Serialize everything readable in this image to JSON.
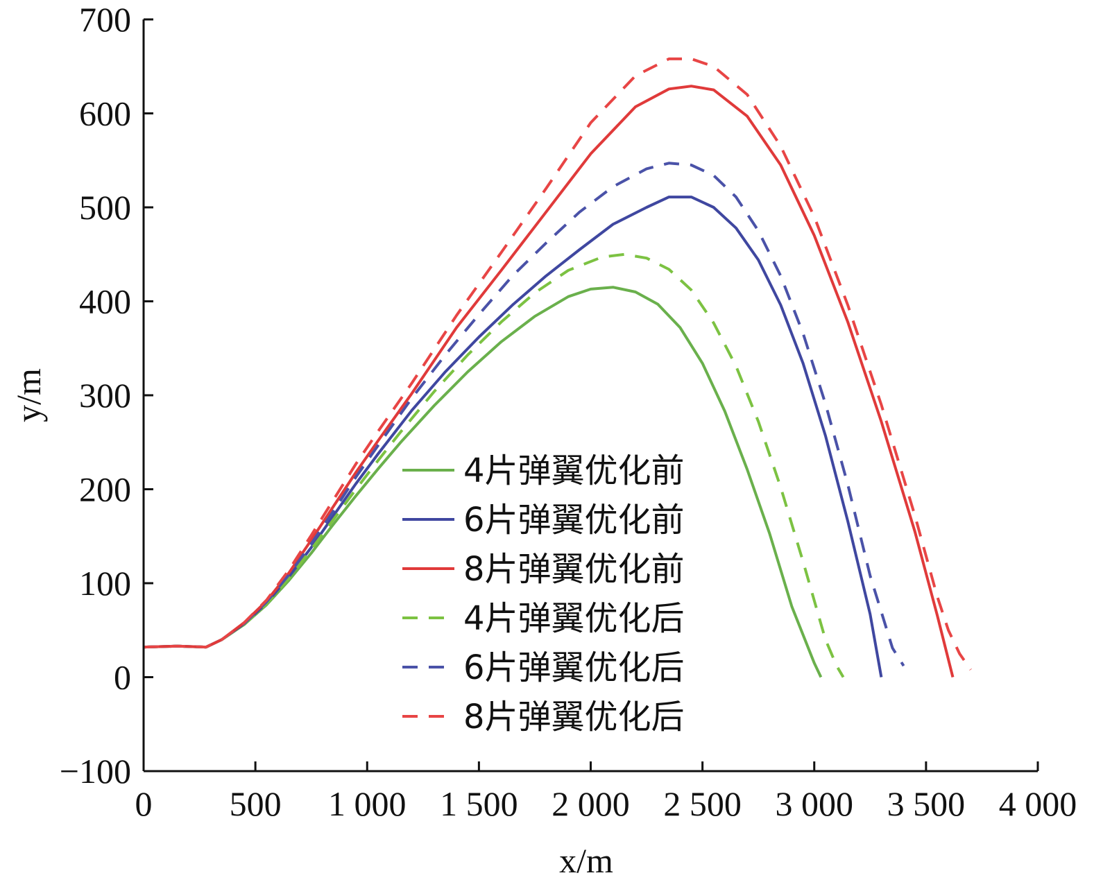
{
  "chart_data": {
    "type": "line",
    "title": "",
    "xlabel": "x/m",
    "ylabel": "y/m",
    "xlim": [
      0,
      4000
    ],
    "ylim": [
      -100,
      700
    ],
    "xticks": [
      0,
      500,
      1000,
      1500,
      2000,
      2500,
      3000,
      3500,
      4000
    ],
    "xtick_labels": [
      "0",
      "500",
      "1 000",
      "1 500",
      "2 000",
      "2 500",
      "3 000",
      "3 500",
      "4 000"
    ],
    "yticks": [
      -100,
      0,
      100,
      200,
      300,
      400,
      500,
      600,
      700
    ],
    "ytick_labels": [
      "−100",
      "0",
      "100",
      "200",
      "300",
      "400",
      "500",
      "600",
      "700"
    ],
    "grid": false,
    "legend_position": "center-right",
    "series": [
      {
        "name": "4片弹翼优化前",
        "color": "#6ab04c",
        "dash": "solid",
        "x": [
          0,
          150,
          280,
          350,
          450,
          550,
          650,
          750,
          850,
          950,
          1050,
          1150,
          1300,
          1450,
          1600,
          1750,
          1900,
          2000,
          2100,
          2200,
          2300,
          2400,
          2500,
          2600,
          2700,
          2800,
          2900,
          3000,
          3030
        ],
        "y": [
          32,
          33,
          32,
          40,
          56,
          77,
          103,
          132,
          163,
          193,
          222,
          250,
          289,
          325,
          357,
          384,
          405,
          413,
          415,
          410,
          397,
          372,
          334,
          283,
          221,
          153,
          75,
          15,
          0
        ]
      },
      {
        "name": "6片弹翼优化前",
        "color": "#3f47a0",
        "dash": "solid",
        "x": [
          0,
          150,
          280,
          350,
          450,
          550,
          650,
          750,
          850,
          950,
          1050,
          1200,
          1350,
          1500,
          1650,
          1800,
          1950,
          2100,
          2250,
          2350,
          2450,
          2550,
          2650,
          2750,
          2850,
          2950,
          3050,
          3150,
          3250,
          3300
        ],
        "y": [
          32,
          33,
          32,
          40,
          57,
          79,
          107,
          138,
          172,
          206,
          238,
          284,
          325,
          362,
          396,
          427,
          455,
          482,
          500,
          511,
          511,
          500,
          478,
          444,
          396,
          334,
          257,
          166,
          67,
          0
        ]
      },
      {
        "name": "8片弹翼优化前",
        "color": "#e03a3a",
        "dash": "solid",
        "x": [
          0,
          150,
          280,
          350,
          450,
          550,
          650,
          750,
          850,
          950,
          1050,
          1200,
          1400,
          1600,
          1800,
          2000,
          2200,
          2350,
          2450,
          2550,
          2700,
          2850,
          3000,
          3150,
          3300,
          3450,
          3550,
          3620
        ],
        "y": [
          32,
          33,
          32,
          40,
          58,
          81,
          111,
          146,
          182,
          218,
          252,
          302,
          372,
          433,
          495,
          557,
          607,
          626,
          629,
          625,
          597,
          545,
          470,
          378,
          272,
          155,
          66,
          0
        ]
      },
      {
        "name": "4片弹翼优化后",
        "color": "#7cc242",
        "dash": "dashed",
        "x": [
          0,
          150,
          280,
          350,
          450,
          550,
          650,
          750,
          850,
          950,
          1050,
          1150,
          1300,
          1450,
          1600,
          1750,
          1900,
          2050,
          2150,
          2250,
          2350,
          2450,
          2550,
          2650,
          2750,
          2850,
          2950,
          3050,
          3100,
          3130
        ],
        "y": [
          32,
          33,
          32,
          40,
          56,
          78,
          105,
          136,
          168,
          200,
          231,
          261,
          304,
          343,
          378,
          409,
          433,
          447,
          450,
          446,
          434,
          412,
          377,
          331,
          272,
          202,
          123,
          40,
          12,
          0
        ]
      },
      {
        "name": "6片弹翼优化后",
        "color": "#4a52a8",
        "dash": "dashed",
        "x": [
          0,
          150,
          280,
          350,
          450,
          550,
          650,
          750,
          850,
          950,
          1050,
          1200,
          1350,
          1500,
          1650,
          1800,
          1950,
          2100,
          2250,
          2350,
          2450,
          2550,
          2650,
          2750,
          2850,
          2950,
          3050,
          3150,
          3250,
          3350,
          3400
        ],
        "y": [
          32,
          33,
          32,
          40,
          57,
          80,
          109,
          142,
          177,
          213,
          247,
          297,
          343,
          386,
          427,
          462,
          495,
          522,
          541,
          547,
          545,
          534,
          511,
          475,
          427,
          366,
          291,
          205,
          108,
          31,
          12
        ]
      },
      {
        "name": "8片弹翼优化后",
        "color": "#e84545",
        "dash": "dashed",
        "x": [
          0,
          150,
          280,
          350,
          450,
          550,
          650,
          750,
          850,
          950,
          1050,
          1200,
          1400,
          1600,
          1800,
          2000,
          2200,
          2350,
          2450,
          2550,
          2700,
          2850,
          3000,
          3150,
          3300,
          3450,
          3550,
          3600,
          3650,
          3700
        ],
        "y": [
          32,
          33,
          32,
          40,
          58,
          82,
          114,
          151,
          189,
          227,
          262,
          313,
          385,
          452,
          520,
          590,
          640,
          658,
          658,
          650,
          620,
          565,
          490,
          396,
          290,
          172,
          86,
          50,
          25,
          8
        ]
      }
    ]
  }
}
